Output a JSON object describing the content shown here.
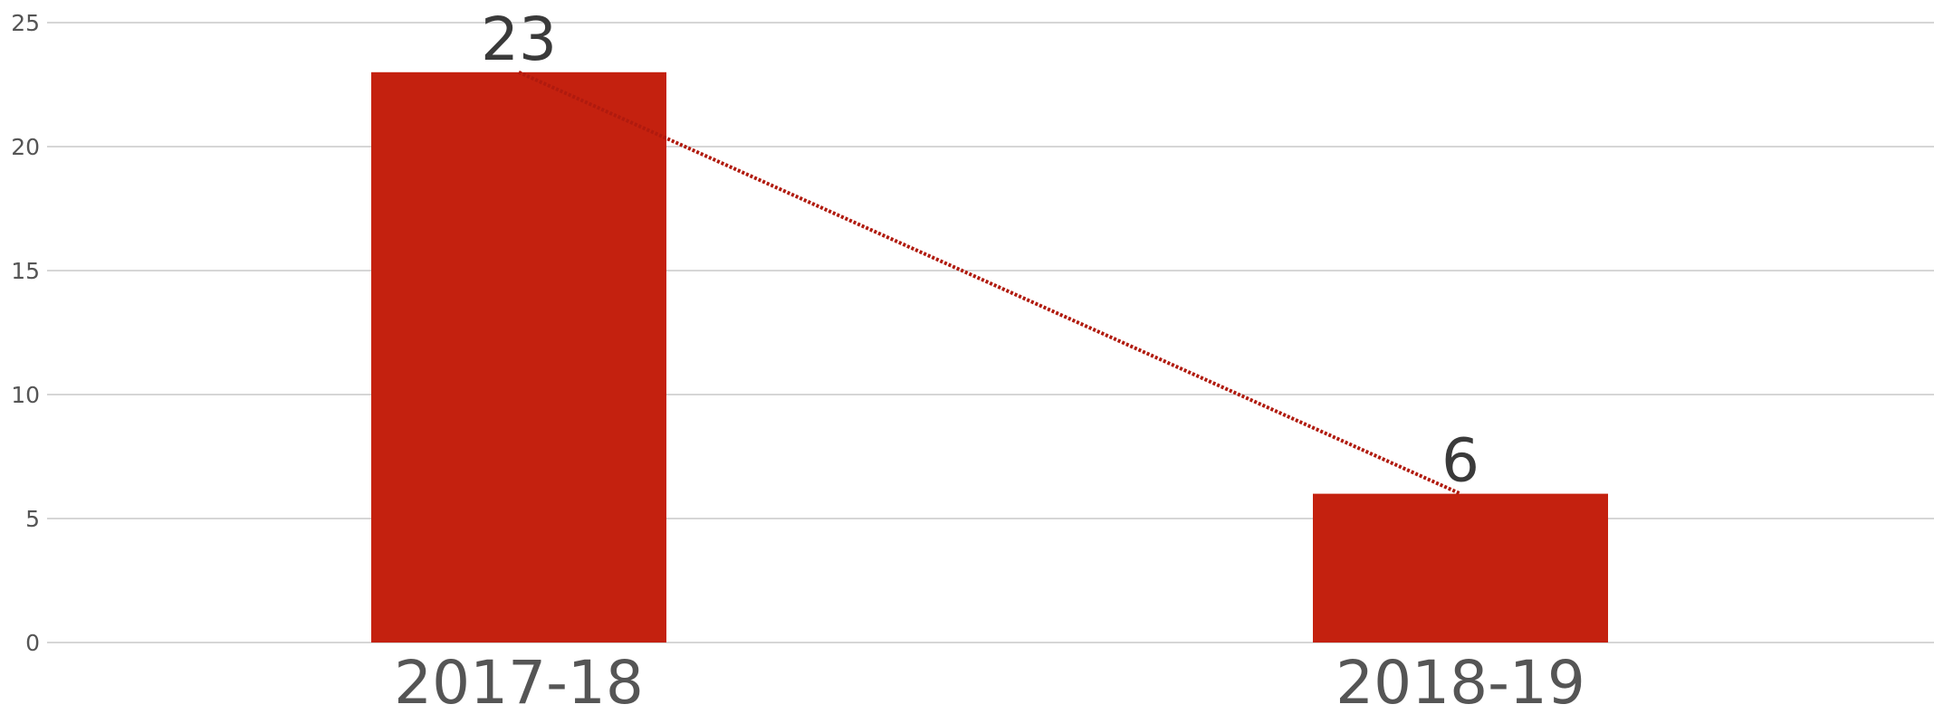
{
  "chart_data": {
    "type": "bar",
    "categories": [
      "2017-18",
      "2018-19"
    ],
    "values": [
      23,
      6
    ],
    "data_labels": [
      "23",
      "6"
    ],
    "ylim": [
      0,
      25
    ],
    "yticks": [
      0,
      5,
      10,
      15,
      20,
      25
    ],
    "ytick_labels": [
      "0",
      "5",
      "10",
      "15",
      "20",
      "25"
    ],
    "grid": true,
    "trendline": "dotted line connecting bar tops",
    "title": "",
    "xlabel": "",
    "ylabel": "",
    "colors": {
      "bar": "#c4210f",
      "trendline": "#b01a0e",
      "grid": "#d6d6d6",
      "tick_text": "#555555",
      "label_text": "#3a3a3a"
    }
  }
}
